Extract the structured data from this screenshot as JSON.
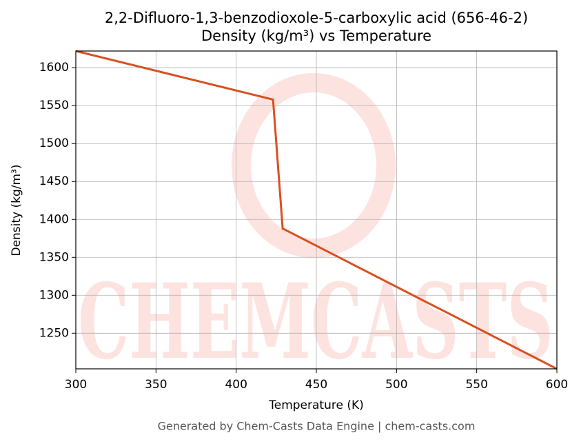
{
  "chart_data": {
    "type": "line",
    "title": "2,2-Difluoro-1,3-benzodioxole-5-carboxylic acid (656-46-2)",
    "subtitle": "Density (kg/m³) vs Temperature",
    "x_label": "Temperature (K)",
    "y_label": "Density (kg/m³)",
    "footer": "Generated by Chem-Casts Data Engine | chem-casts.com",
    "watermark": "CHEMCASTS",
    "x": [
      300,
      423,
      429,
      600
    ],
    "series": [
      {
        "name": "Density",
        "color": "#d95020",
        "values": [
          1622,
          1558,
          1388,
          1203
        ]
      }
    ],
    "xlim": [
      300,
      600
    ],
    "xticks": [
      300,
      350,
      400,
      450,
      500,
      550,
      600
    ],
    "ylim": [
      1203,
      1622
    ],
    "yticks": [
      1250,
      1300,
      1350,
      1400,
      1450,
      1500,
      1550,
      1600
    ],
    "grid": true
  }
}
